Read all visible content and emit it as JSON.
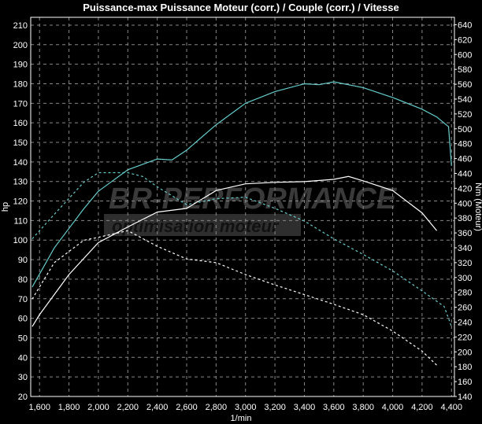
{
  "chart_data": {
    "type": "line",
    "title": "Puissance-max Puissance Moteur (corr.) / Couple (corr.) / Vitesse",
    "xlabel": "1/min",
    "ylabel": "hp",
    "y2label": "Nm (Moteur)",
    "xlim": [
      1540,
      4420
    ],
    "ylim": [
      20,
      214
    ],
    "y2lim": [
      140,
      650
    ],
    "xticks": [
      1600,
      1800,
      2000,
      2200,
      2400,
      2600,
      2800,
      3000,
      3200,
      3400,
      3600,
      3800,
      4000,
      4200,
      4400
    ],
    "xtick_labels": [
      "1,600",
      "1,800",
      "2,000",
      "2,200",
      "2,400",
      "2,600",
      "2,800",
      "3,000",
      "3,200",
      "3,400",
      "3,600",
      "3,800",
      "4,000",
      "4,200",
      "4,400"
    ],
    "yticks": [
      20,
      30,
      40,
      50,
      60,
      70,
      80,
      90,
      100,
      110,
      120,
      130,
      140,
      150,
      160,
      170,
      180,
      190,
      200,
      210
    ],
    "y2ticks": [
      140,
      160,
      180,
      200,
      220,
      240,
      260,
      280,
      300,
      320,
      340,
      360,
      380,
      400,
      420,
      440,
      460,
      480,
      500,
      520,
      540,
      560,
      580,
      600,
      620,
      640
    ],
    "grid": true,
    "series": [
      {
        "axis": "left",
        "color": "#66cccc",
        "style": "solid",
        "x": [
          1550,
          1700,
          1800,
          1900,
          2000,
          2200,
          2400,
          2500,
          2600,
          2800,
          3000,
          3200,
          3400,
          3500,
          3600,
          3800,
          4000,
          4200,
          4300,
          4380,
          4400
        ],
        "y": [
          76,
          96,
          106,
          116,
          125,
          136,
          141.5,
          141,
          146,
          159,
          170,
          176,
          180,
          179.5,
          181,
          178,
          173,
          167,
          163,
          158,
          138
        ]
      },
      {
        "axis": "right",
        "color": "#66cccc",
        "style": "dashed",
        "x": [
          1550,
          1700,
          1900,
          2000,
          2200,
          2300,
          2400,
          2600,
          2800,
          3000,
          3200,
          3400,
          3600,
          3800,
          4000,
          4200,
          4350,
          4400
        ],
        "y": [
          352,
          385,
          428,
          441,
          441,
          436,
          422,
          398,
          406,
          408,
          393,
          376,
          352,
          331,
          309,
          282,
          261,
          234
        ]
      },
      {
        "axis": "right",
        "color": "#ffffff",
        "style": "solid",
        "x": [
          1550,
          1600,
          1700,
          1800,
          2000,
          2200,
          2400,
          2600,
          2800,
          3000,
          3200,
          3400,
          3600,
          3700,
          3800,
          4000,
          4200,
          4300
        ],
        "y": [
          234,
          250,
          277,
          304,
          347,
          368,
          388,
          393,
          417,
          426,
          428,
          429,
          432,
          436,
          430,
          417,
          387,
          363
        ]
      },
      {
        "axis": "right",
        "color": "#ffffff",
        "style": "dashed",
        "x": [
          1550,
          1700,
          1900,
          2000,
          2200,
          2400,
          2600,
          2800,
          3000,
          3200,
          3400,
          3600,
          3800,
          4000,
          4200,
          4300
        ],
        "y": [
          271,
          320,
          350,
          354,
          363,
          342,
          325,
          320,
          304,
          290,
          277,
          264,
          250,
          228,
          201,
          182
        ]
      }
    ]
  },
  "watermark": {
    "line1": "BR-PERFORMANCE",
    "line2": "optimisation moteur"
  }
}
